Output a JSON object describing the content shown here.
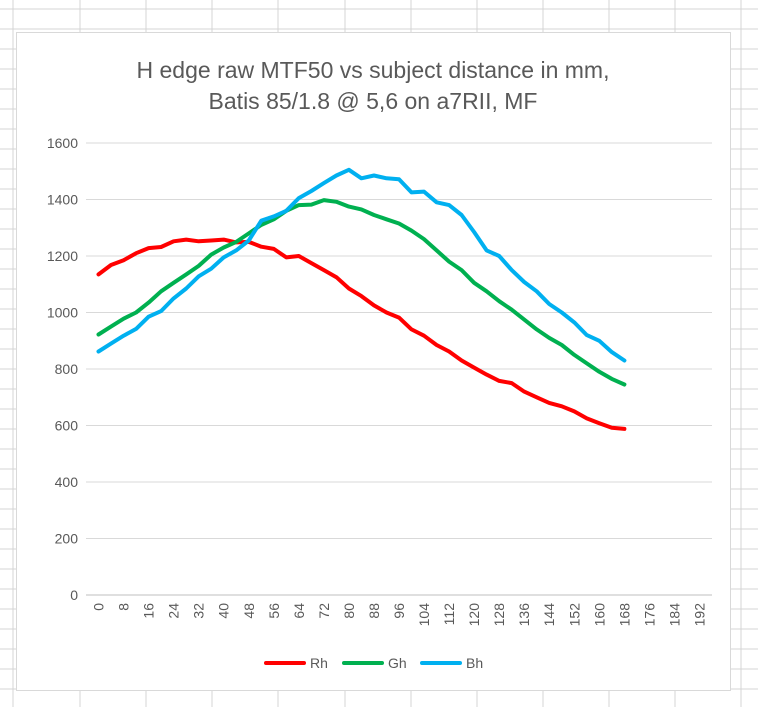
{
  "chart_data": {
    "type": "line",
    "title": "H edge raw MTF50 vs subject distance in mm,",
    "subtitle": "Batis 85/1.8 @ 5,6 on a7RII, MF",
    "xlabel": "",
    "ylabel": "",
    "ylim": [
      0,
      1600
    ],
    "yticks": [
      "0",
      "200",
      "400",
      "600",
      "800",
      "1000",
      "1200",
      "1400",
      "1600"
    ],
    "xticks": [
      "0",
      "8",
      "16",
      "24",
      "32",
      "40",
      "48",
      "56",
      "64",
      "72",
      "80",
      "88",
      "96",
      "104",
      "112",
      "120",
      "128",
      "136",
      "144",
      "152",
      "160",
      "168",
      "176",
      "184",
      "192"
    ],
    "x": [
      0,
      4,
      8,
      12,
      16,
      20,
      24,
      28,
      32,
      36,
      40,
      44,
      48,
      52,
      56,
      60,
      64,
      68,
      72,
      76,
      80,
      84,
      88,
      92,
      96,
      100,
      104,
      108,
      112,
      116,
      120,
      124,
      128,
      132,
      136,
      140,
      144,
      148,
      152,
      156,
      160,
      164,
      168
    ],
    "grid": true,
    "legend_position": "bottom",
    "series": [
      {
        "name": "Rh",
        "color": "#ff0000",
        "values": [
          1135,
          1168,
          1185,
          1210,
          1228,
          1232,
          1252,
          1258,
          1252,
          1255,
          1258,
          1248,
          1250,
          1233,
          1225,
          1195,
          1200,
          1175,
          1150,
          1125,
          1085,
          1058,
          1025,
          1000,
          982,
          940,
          918,
          885,
          862,
          830,
          805,
          780,
          758,
          750,
          720,
          700,
          680,
          668,
          650,
          625,
          608,
          592,
          588
        ]
      },
      {
        "name": "Gh",
        "color": "#00b050",
        "values": [
          922,
          950,
          978,
          1000,
          1035,
          1075,
          1105,
          1135,
          1165,
          1205,
          1230,
          1250,
          1280,
          1310,
          1330,
          1360,
          1380,
          1382,
          1398,
          1392,
          1375,
          1365,
          1345,
          1330,
          1315,
          1290,
          1260,
          1220,
          1180,
          1150,
          1105,
          1075,
          1040,
          1010,
          975,
          940,
          910,
          885,
          850,
          820,
          790,
          765,
          745
        ]
      },
      {
        "name": "Bh",
        "color": "#00b0f0",
        "values": [
          862,
          890,
          918,
          942,
          985,
          1005,
          1050,
          1085,
          1128,
          1155,
          1195,
          1220,
          1255,
          1325,
          1340,
          1360,
          1405,
          1430,
          1458,
          1485,
          1505,
          1475,
          1485,
          1475,
          1472,
          1425,
          1428,
          1390,
          1380,
          1345,
          1285,
          1220,
          1200,
          1150,
          1108,
          1075,
          1030,
          1000,
          965,
          920,
          900,
          860,
          830
        ]
      }
    ]
  }
}
